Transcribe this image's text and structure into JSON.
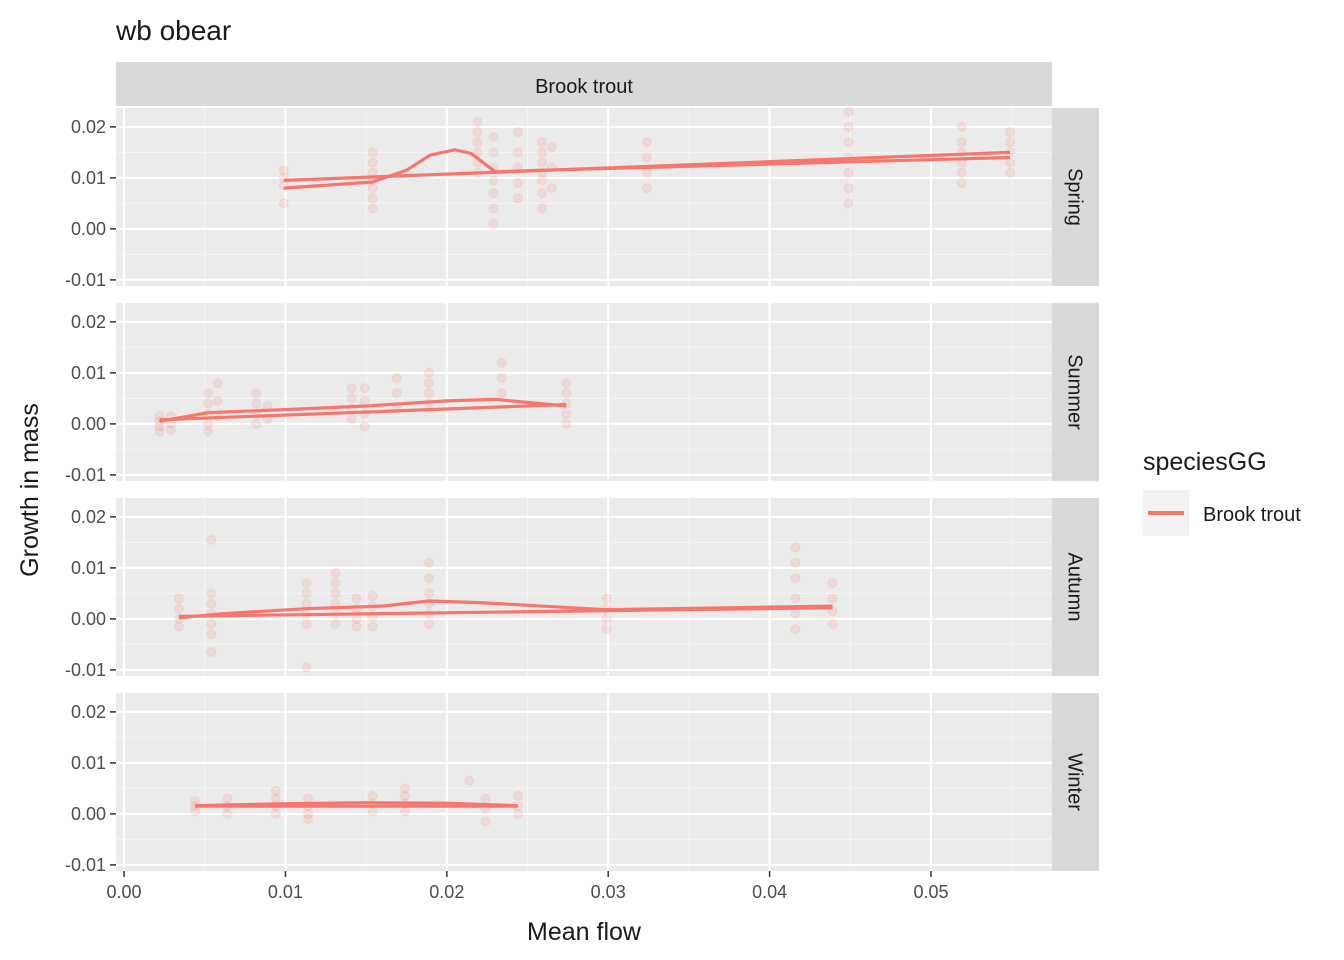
{
  "chart_data": {
    "type": "scatter",
    "title": "wb obear",
    "xlabel": "Mean flow",
    "ylabel": "Growth in mass",
    "column_strip": "Brook trout",
    "legend": {
      "title": "speciesGG",
      "entries": [
        "Brook trout"
      ],
      "position": "right"
    },
    "xlim": [
      -0.0005,
      0.0575
    ],
    "ylim": [
      -0.0112,
      0.0237
    ],
    "x_ticks": [
      0.0,
      0.01,
      0.02,
      0.03,
      0.04,
      0.05
    ],
    "x_tick_labels": [
      "0.00",
      "0.01",
      "0.02",
      "0.03",
      "0.04",
      "0.05"
    ],
    "y_ticks": [
      0.02,
      0.01,
      0.0,
      -0.01
    ],
    "y_tick_labels": [
      "0.02",
      "0.01",
      "0.00",
      "-0.01"
    ],
    "grid": true,
    "series_color": "#F8766D",
    "panels": [
      {
        "label": "Spring",
        "points": [
          [
            0.0099,
            0.0115
          ],
          [
            0.0099,
            0.01
          ],
          [
            0.0099,
            0.0085
          ],
          [
            0.0099,
            0.005
          ],
          [
            0.0154,
            0.015
          ],
          [
            0.0154,
            0.013
          ],
          [
            0.0154,
            0.011
          ],
          [
            0.0154,
            0.0095
          ],
          [
            0.0154,
            0.008
          ],
          [
            0.0154,
            0.006
          ],
          [
            0.0154,
            0.004
          ],
          [
            0.0219,
            0.021
          ],
          [
            0.0219,
            0.019
          ],
          [
            0.0219,
            0.017
          ],
          [
            0.0219,
            0.015
          ],
          [
            0.0219,
            0.013
          ],
          [
            0.0219,
            0.011
          ],
          [
            0.0229,
            0.018
          ],
          [
            0.0229,
            0.015
          ],
          [
            0.0229,
            0.012
          ],
          [
            0.0229,
            0.0095
          ],
          [
            0.0229,
            0.007
          ],
          [
            0.0229,
            0.004
          ],
          [
            0.0229,
            0.001
          ],
          [
            0.0244,
            0.019
          ],
          [
            0.0244,
            0.015
          ],
          [
            0.0244,
            0.012
          ],
          [
            0.0244,
            0.009
          ],
          [
            0.0244,
            0.006
          ],
          [
            0.0259,
            0.017
          ],
          [
            0.0259,
            0.015
          ],
          [
            0.0259,
            0.013
          ],
          [
            0.0259,
            0.011
          ],
          [
            0.0259,
            0.0095
          ],
          [
            0.0259,
            0.007
          ],
          [
            0.0259,
            0.004
          ],
          [
            0.0265,
            0.016
          ],
          [
            0.0265,
            0.012
          ],
          [
            0.0265,
            0.008
          ],
          [
            0.0324,
            0.017
          ],
          [
            0.0324,
            0.014
          ],
          [
            0.0324,
            0.011
          ],
          [
            0.0324,
            0.008
          ],
          [
            0.0449,
            0.023
          ],
          [
            0.0449,
            0.02
          ],
          [
            0.0449,
            0.017
          ],
          [
            0.0449,
            0.014
          ],
          [
            0.0449,
            0.011
          ],
          [
            0.0449,
            0.008
          ],
          [
            0.0449,
            0.005
          ],
          [
            0.0519,
            0.02
          ],
          [
            0.0519,
            0.017
          ],
          [
            0.0519,
            0.015
          ],
          [
            0.0519,
            0.013
          ],
          [
            0.0519,
            0.011
          ],
          [
            0.0519,
            0.009
          ],
          [
            0.0549,
            0.019
          ],
          [
            0.0549,
            0.017
          ],
          [
            0.0549,
            0.015
          ],
          [
            0.0549,
            0.013
          ],
          [
            0.0549,
            0.011
          ]
        ],
        "lines": [
          [
            [
              0.0099,
              0.0095
            ],
            [
              0.0549,
              0.015
            ]
          ],
          [
            [
              0.0099,
              0.008
            ],
            [
              0.0154,
              0.0092
            ],
            [
              0.0175,
              0.0115
            ],
            [
              0.019,
              0.0145
            ],
            [
              0.0205,
              0.0155
            ],
            [
              0.0215,
              0.0148
            ],
            [
              0.023,
              0.0112
            ],
            [
              0.026,
              0.0115
            ],
            [
              0.0549,
              0.014
            ]
          ]
        ]
      },
      {
        "label": "Summer",
        "points": [
          [
            0.0022,
            0.0015
          ],
          [
            0.0022,
            0.0005
          ],
          [
            0.0022,
            -0.0005
          ],
          [
            0.0022,
            -0.0015
          ],
          [
            0.0029,
            0.0015
          ],
          [
            0.0029,
            0.0
          ],
          [
            0.0029,
            -0.0012
          ],
          [
            0.0052,
            0.006
          ],
          [
            0.0052,
            0.004
          ],
          [
            0.0052,
            0.002
          ],
          [
            0.0052,
            0.0
          ],
          [
            0.0052,
            -0.0015
          ],
          [
            0.0058,
            0.008
          ],
          [
            0.0058,
            0.0045
          ],
          [
            0.0058,
            0.0015
          ],
          [
            0.0082,
            0.006
          ],
          [
            0.0082,
            0.004
          ],
          [
            0.0082,
            0.002
          ],
          [
            0.0082,
            0.0
          ],
          [
            0.0089,
            0.0035
          ],
          [
            0.0089,
            0.001
          ],
          [
            0.0141,
            0.007
          ],
          [
            0.0141,
            0.005
          ],
          [
            0.0141,
            0.003
          ],
          [
            0.0141,
            0.001
          ],
          [
            0.0149,
            0.007
          ],
          [
            0.0149,
            0.0045
          ],
          [
            0.0149,
            0.002
          ],
          [
            0.0149,
            -0.0005
          ],
          [
            0.0169,
            0.009
          ],
          [
            0.0169,
            0.006
          ],
          [
            0.0169,
            0.003
          ],
          [
            0.0189,
            0.01
          ],
          [
            0.0189,
            0.008
          ],
          [
            0.0189,
            0.006
          ],
          [
            0.0189,
            0.004
          ],
          [
            0.0234,
            0.012
          ],
          [
            0.0234,
            0.009
          ],
          [
            0.0234,
            0.006
          ],
          [
            0.0274,
            0.008
          ],
          [
            0.0274,
            0.006
          ],
          [
            0.0274,
            0.004
          ],
          [
            0.0274,
            0.002
          ],
          [
            0.0274,
            0.0
          ]
        ],
        "lines": [
          [
            [
              0.0022,
              0.0008
            ],
            [
              0.0274,
              0.0038
            ]
          ],
          [
            [
              0.0022,
              0.0005
            ],
            [
              0.0052,
              0.0022
            ],
            [
              0.01,
              0.0028
            ],
            [
              0.015,
              0.0035
            ],
            [
              0.02,
              0.0045
            ],
            [
              0.023,
              0.0048
            ],
            [
              0.0274,
              0.0035
            ]
          ]
        ]
      },
      {
        "label": "Autumn",
        "points": [
          [
            0.0034,
            0.004
          ],
          [
            0.0034,
            0.002
          ],
          [
            0.0034,
            0.0
          ],
          [
            0.0034,
            -0.0015
          ],
          [
            0.0054,
            0.0155
          ],
          [
            0.0054,
            0.005
          ],
          [
            0.0054,
            0.003
          ],
          [
            0.0054,
            0.001
          ],
          [
            0.0054,
            -0.001
          ],
          [
            0.0054,
            -0.003
          ],
          [
            0.0054,
            -0.0065
          ],
          [
            0.0113,
            0.007
          ],
          [
            0.0113,
            0.005
          ],
          [
            0.0113,
            0.003
          ],
          [
            0.0113,
            0.001
          ],
          [
            0.0113,
            -0.001
          ],
          [
            0.0113,
            -0.0095
          ],
          [
            0.0131,
            0.009
          ],
          [
            0.0131,
            0.007
          ],
          [
            0.0131,
            0.005
          ],
          [
            0.0131,
            0.003
          ],
          [
            0.0131,
            0.001
          ],
          [
            0.0131,
            -0.001
          ],
          [
            0.0144,
            0.004
          ],
          [
            0.0144,
            0.002
          ],
          [
            0.0144,
            0.0
          ],
          [
            0.0144,
            -0.0015
          ],
          [
            0.0154,
            0.0045
          ],
          [
            0.0154,
            0.0025
          ],
          [
            0.0154,
            0.0005
          ],
          [
            0.0154,
            -0.0015
          ],
          [
            0.0189,
            0.011
          ],
          [
            0.0189,
            0.008
          ],
          [
            0.0189,
            0.005
          ],
          [
            0.0189,
            0.003
          ],
          [
            0.0189,
            0.001
          ],
          [
            0.0189,
            -0.001
          ],
          [
            0.0299,
            0.004
          ],
          [
            0.0299,
            0.002
          ],
          [
            0.0299,
            0.0
          ],
          [
            0.0299,
            -0.002
          ],
          [
            0.0416,
            0.014
          ],
          [
            0.0416,
            0.011
          ],
          [
            0.0416,
            0.008
          ],
          [
            0.0416,
            0.004
          ],
          [
            0.0416,
            0.001
          ],
          [
            0.0416,
            -0.002
          ],
          [
            0.0439,
            0.007
          ],
          [
            0.0439,
            0.004
          ],
          [
            0.0439,
            0.0015
          ],
          [
            0.0439,
            -0.001
          ]
        ],
        "lines": [
          [
            [
              0.0034,
              0.0005
            ],
            [
              0.0439,
              0.0022
            ]
          ],
          [
            [
              0.0034,
              0.0002
            ],
            [
              0.006,
              0.001
            ],
            [
              0.0113,
              0.002
            ],
            [
              0.016,
              0.0025
            ],
            [
              0.0189,
              0.0035
            ],
            [
              0.022,
              0.0032
            ],
            [
              0.0299,
              0.0018
            ],
            [
              0.0439,
              0.0025
            ]
          ]
        ]
      },
      {
        "label": "Winter",
        "points": [
          [
            0.0044,
            0.0025
          ],
          [
            0.0044,
            0.0015
          ],
          [
            0.0044,
            0.0005
          ],
          [
            0.0064,
            0.003
          ],
          [
            0.0064,
            0.0015
          ],
          [
            0.0064,
            0.0
          ],
          [
            0.0094,
            0.0045
          ],
          [
            0.0094,
            0.003
          ],
          [
            0.0094,
            0.0015
          ],
          [
            0.0094,
            0.0
          ],
          [
            0.0114,
            0.003
          ],
          [
            0.0114,
            0.0015
          ],
          [
            0.0114,
            0.0
          ],
          [
            0.0114,
            -0.001
          ],
          [
            0.0154,
            0.0035
          ],
          [
            0.0154,
            0.002
          ],
          [
            0.0154,
            0.0005
          ],
          [
            0.0174,
            0.005
          ],
          [
            0.0174,
            0.0035
          ],
          [
            0.0174,
            0.002
          ],
          [
            0.0174,
            0.0005
          ],
          [
            0.0214,
            0.0065
          ],
          [
            0.0224,
            0.003
          ],
          [
            0.0224,
            0.001
          ],
          [
            0.0224,
            -0.0015
          ],
          [
            0.0244,
            0.0035
          ],
          [
            0.0244,
            0.0015
          ],
          [
            0.0244,
            0.0
          ]
        ],
        "lines": [
          [
            [
              0.0044,
              0.0015
            ],
            [
              0.0244,
              0.0015
            ]
          ],
          [
            [
              0.0044,
              0.0016
            ],
            [
              0.01,
              0.002
            ],
            [
              0.015,
              0.0022
            ],
            [
              0.02,
              0.0021
            ],
            [
              0.0244,
              0.0016
            ]
          ]
        ]
      }
    ]
  }
}
